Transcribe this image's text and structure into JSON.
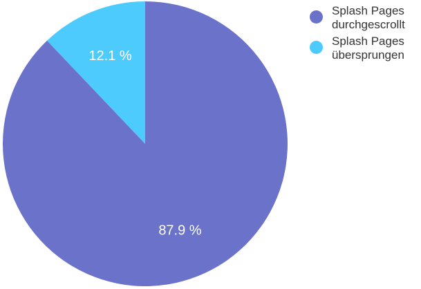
{
  "chart_data": {
    "type": "pie",
    "categories": [
      "Splash Pages\ndurchgescrollt",
      "Splash Pages\nübersprungen"
    ],
    "values": [
      87.9,
      12.1
    ],
    "value_labels": [
      "87.9 %",
      "12.1 %"
    ],
    "colors": [
      "#6b72c9",
      "#4dcbfd"
    ],
    "start_angle_deg": 0,
    "direction": "clockwise",
    "legend_placement": "top-right"
  }
}
